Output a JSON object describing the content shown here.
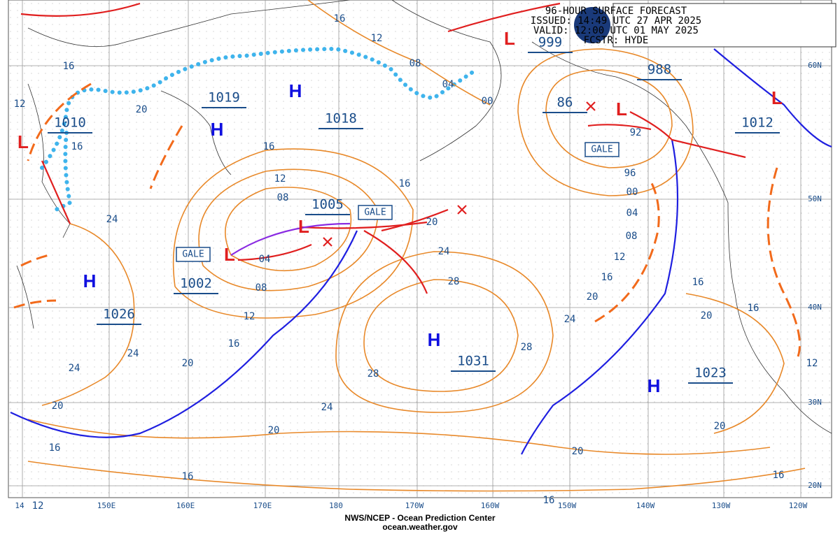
{
  "header": {
    "lines": [
      "96-HOUR SURFACE FORECAST",
      "ISSUED: 14:49 UTC 27 APR 2025",
      "VALID:  12:00 UTC 01 MAY 2025",
      "FCSTR: HYDE"
    ]
  },
  "footer": {
    "agency": "NWS/NCEP - Ocean Prediction Center",
    "url": "ocean.weather.gov"
  },
  "longitudes": [
    "14",
    "150E",
    "160E",
    "170E",
    "180",
    "170W",
    "160W",
    "150W",
    "140W",
    "130W",
    "120W"
  ],
  "latitudes": [
    "60N",
    "50N",
    "40N",
    "30N",
    "20N"
  ],
  "pressure_centers": [
    "1010",
    "1019",
    "1018",
    "1005",
    "1002",
    "1026",
    "1031",
    "999",
    "988",
    "86",
    "1012",
    "1023"
  ],
  "highs": [
    "H",
    "H",
    "H",
    "H",
    "H"
  ],
  "lows": [
    "L",
    "L",
    "L",
    "L",
    "L",
    "L"
  ],
  "gale_labels": [
    "GALE",
    "GALE",
    "GALE"
  ],
  "isobar_labels": [
    "16",
    "12",
    "08",
    "04",
    "00",
    "16",
    "12",
    "20",
    "16",
    "16",
    "16",
    "12",
    "08",
    "04",
    "08",
    "12",
    "16",
    "20",
    "24",
    "24",
    "24",
    "20",
    "16",
    "16",
    "20",
    "24",
    "28",
    "28",
    "24",
    "20",
    "28",
    "24",
    "20",
    "16",
    "12",
    "08",
    "04",
    "00",
    "96",
    "92",
    "16",
    "20",
    "20",
    "16",
    "12",
    "16",
    "20",
    "16",
    "12"
  ]
}
